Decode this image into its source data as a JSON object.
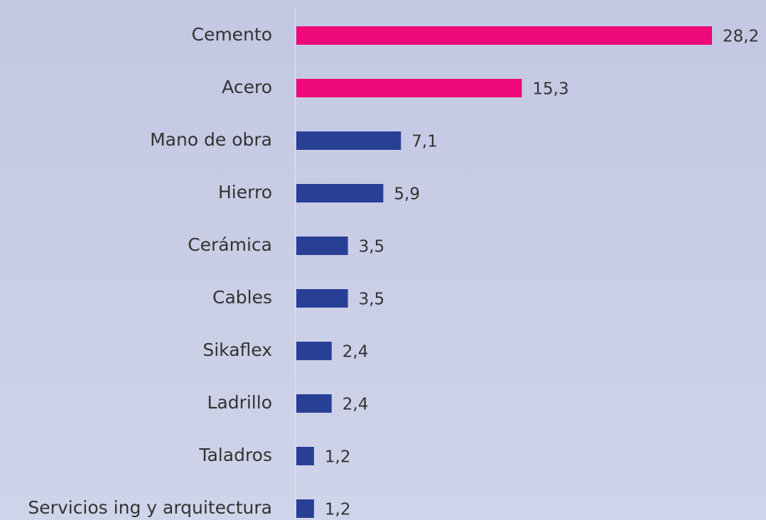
{
  "chart_data": {
    "type": "bar",
    "orientation": "horizontal",
    "categories": [
      "Cemento",
      "Acero",
      "Mano de obra",
      "Hierro",
      "Cerámica",
      "Cables",
      "Sikaflex",
      "Ladrillo",
      "Taladros",
      "Servicios ing y arquitectura"
    ],
    "values": [
      28.2,
      15.3,
      7.1,
      5.9,
      3.5,
      3.5,
      2.4,
      2.4,
      1.2,
      1.2
    ],
    "value_labels": [
      "28,2",
      "15,3",
      "7,1",
      "5,9",
      "3,5",
      "3,5",
      "2,4",
      "2,4",
      "1,2",
      "1,2"
    ],
    "colors": [
      "#ee0a7a",
      "#ee0a7a",
      "#283f96",
      "#283f96",
      "#283f96",
      "#283f96",
      "#283f96",
      "#283f96",
      "#283f96",
      "#283f96"
    ]
  }
}
